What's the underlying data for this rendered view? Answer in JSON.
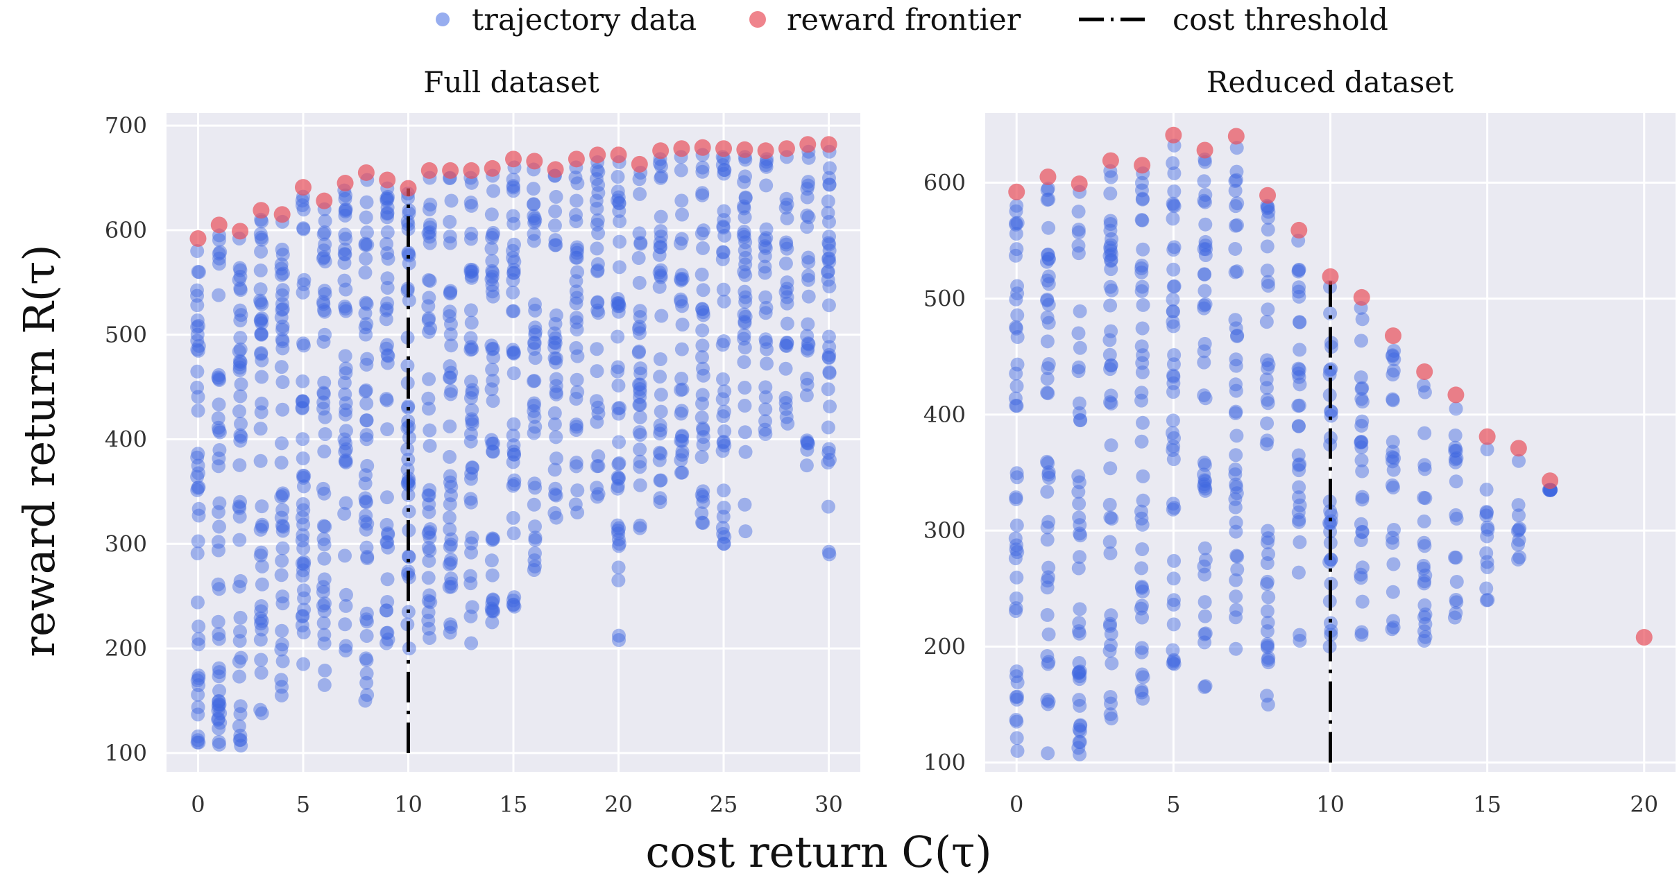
{
  "legend": {
    "trajectory": "trajectory data",
    "frontier": "reward frontier",
    "threshold": "cost threshold"
  },
  "colors": {
    "panel_bg": "#eaeaf2",
    "grid": "#ffffff",
    "trajectory": "#4169e1",
    "frontier": "#e8505b",
    "threshold": "#000000"
  },
  "xlabel": "cost return C(τ)",
  "ylabel": "reward return R(τ)",
  "chart_data": [
    {
      "type": "scatter",
      "title": "Full dataset",
      "xlim": [
        -1.5,
        31.5
      ],
      "ylim": [
        82,
        712
      ],
      "xticks": [
        0,
        5,
        10,
        15,
        20,
        25,
        30
      ],
      "yticks": [
        100,
        200,
        300,
        400,
        500,
        600,
        700
      ],
      "cost_threshold": 10,
      "threshold_range": [
        100,
        640
      ],
      "frontier": {
        "x": [
          0,
          1,
          2,
          3,
          4,
          5,
          6,
          7,
          8,
          9,
          10,
          11,
          12,
          13,
          14,
          15,
          16,
          17,
          18,
          19,
          20,
          21,
          22,
          23,
          24,
          25,
          26,
          27,
          28,
          29,
          30
        ],
        "y": [
          592,
          605,
          599,
          619,
          615,
          641,
          628,
          645,
          655,
          648,
          640,
          657,
          657,
          657,
          659,
          668,
          666,
          658,
          668,
          672,
          672,
          663,
          676,
          678,
          679,
          678,
          677,
          676,
          678,
          682,
          682
        ]
      },
      "trajectory": {
        "x": [
          0,
          1,
          2,
          3,
          4,
          5,
          6,
          7,
          8,
          9,
          10,
          11,
          12,
          13,
          14,
          15,
          16,
          17,
          18,
          19,
          20,
          21,
          22,
          23,
          24,
          25,
          26,
          27,
          28,
          29,
          30
        ],
        "min": [
          110,
          108,
          107,
          138,
          155,
          185,
          165,
          198,
          150,
          205,
          200,
          210,
          215,
          205,
          225,
          240,
          275,
          325,
          330,
          345,
          208,
          315,
          340,
          368,
          320,
          300,
          312,
          405,
          415,
          375,
          290
        ],
        "max": [
          580,
          595,
          592,
          610,
          608,
          632,
          620,
          638,
          648,
          640,
          635,
          650,
          650,
          650,
          652,
          660,
          658,
          652,
          660,
          665,
          665,
          655,
          668,
          670,
          672,
          670,
          670,
          668,
          670,
          675,
          675
        ]
      }
    },
    {
      "type": "scatter",
      "title": "Reduced dataset",
      "xlim": [
        -1,
        21
      ],
      "ylim": [
        92,
        660
      ],
      "xticks": [
        0,
        5,
        10,
        15,
        20
      ],
      "yticks": [
        100,
        200,
        300,
        400,
        500,
        600
      ],
      "cost_threshold": 10,
      "threshold_range": [
        100,
        515
      ],
      "frontier": {
        "x": [
          0,
          1,
          2,
          3,
          4,
          5,
          6,
          7,
          8,
          9,
          10,
          11,
          12,
          13,
          14,
          15,
          16,
          17,
          20
        ],
        "y": [
          592,
          605,
          599,
          619,
          615,
          641,
          628,
          640,
          589,
          559,
          519,
          501,
          468,
          437,
          417,
          381,
          371,
          343,
          208
        ]
      },
      "trajectory": {
        "x": [
          0,
          1,
          2,
          3,
          4,
          5,
          6,
          7,
          8,
          9,
          10,
          11,
          12,
          13,
          14,
          15,
          16,
          17
        ],
        "min": [
          110,
          108,
          107,
          138,
          155,
          185,
          165,
          198,
          150,
          205,
          200,
          210,
          215,
          205,
          225,
          240,
          275,
          335
        ],
        "max": [
          580,
          595,
          592,
          610,
          608,
          632,
          620,
          630,
          580,
          550,
          510,
          492,
          455,
          425,
          405,
          370,
          360,
          335
        ]
      }
    }
  ]
}
